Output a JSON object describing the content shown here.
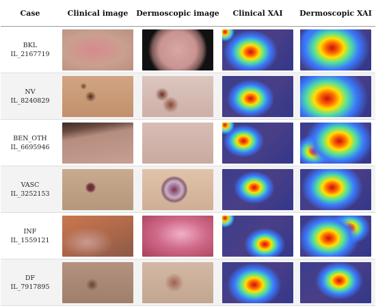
{
  "table": {
    "header": [
      "Case",
      "Clinical image",
      "Dermoscopic image",
      "Clinical XAI",
      "Dermoscopic XAI"
    ],
    "rows": [
      [
        "BKL",
        "IL_2167719"
      ],
      [
        "NV",
        "IL_8240829"
      ],
      [
        "BEN_OTH",
        "IL_6695946"
      ],
      [
        "VASC",
        "IL_3252153"
      ],
      [
        "INF",
        "IL_1559121"
      ],
      [
        "DF",
        "IL_7917895"
      ]
    ]
  }
}
